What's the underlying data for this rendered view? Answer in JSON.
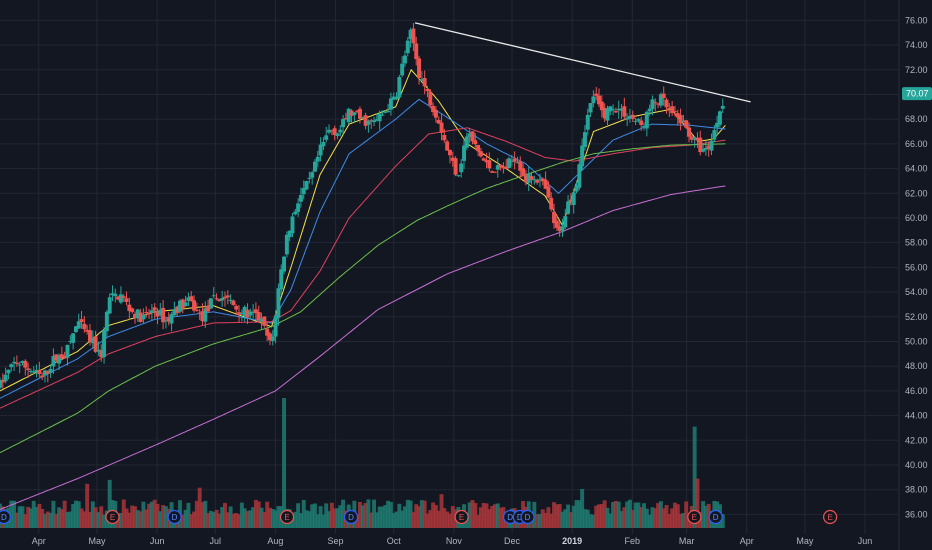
{
  "colors": {
    "background": "#131722",
    "grid": "#232733",
    "up": "#26a69a",
    "down": "#ef5350",
    "vol_up": "#1f7a70",
    "vol_down": "#a8363a",
    "ma_yellow": "#f5e14a",
    "ma_blue": "#3d8be8",
    "ma_red": "#e0415e",
    "ma_green": "#6bbf4a",
    "ma_purple": "#c76fd4",
    "trendline": "#e8e8e8",
    "price_tag": "#26a69a",
    "earnings_marker": "#ef5350",
    "dividend_marker": "#2962ff"
  },
  "last_price_label": "70.07",
  "chart_data": {
    "type": "line",
    "title": "",
    "xlabel": "",
    "ylabel": "",
    "ylim": [
      34.9,
      77.0
    ],
    "grid": true,
    "y_ticks": [
      "36.00",
      "38.00",
      "40.00",
      "42.00",
      "44.00",
      "46.00",
      "48.00",
      "50.00",
      "52.00",
      "54.00",
      "56.00",
      "58.00",
      "60.00",
      "62.00",
      "64.00",
      "66.00",
      "68.00",
      "70.00",
      "72.00",
      "74.00",
      "76.00"
    ],
    "x_ticks": [
      {
        "label": "Apr",
        "day": 20
      },
      {
        "label": "May",
        "day": 50
      },
      {
        "label": "Jun",
        "day": 81
      },
      {
        "label": "Jul",
        "day": 111
      },
      {
        "label": "Aug",
        "day": 142
      },
      {
        "label": "Sep",
        "day": 173
      },
      {
        "label": "Oct",
        "day": 203
      },
      {
        "label": "Nov",
        "day": 234
      },
      {
        "label": "Dec",
        "day": 264
      },
      {
        "label": "2019",
        "day": 295
      },
      {
        "label": "Feb",
        "day": 326
      },
      {
        "label": "Mar",
        "day": 354
      },
      {
        "label": "Apr",
        "day": 385
      },
      {
        "label": "May",
        "day": 415
      },
      {
        "label": "Jun",
        "day": 446
      }
    ],
    "x_range_days": [
      0,
      463
    ],
    "price_path": [
      [
        0,
        46.5
      ],
      [
        8,
        48.4
      ],
      [
        16,
        47.7
      ],
      [
        22,
        47.0
      ],
      [
        28,
        48.6
      ],
      [
        34,
        49.0
      ],
      [
        40,
        51.6
      ],
      [
        46,
        50.2
      ],
      [
        52,
        48.8
      ],
      [
        56,
        53.4
      ],
      [
        62,
        53.8
      ],
      [
        68,
        52.4
      ],
      [
        74,
        51.9
      ],
      [
        80,
        52.6
      ],
      [
        86,
        51.6
      ],
      [
        92,
        52.9
      ],
      [
        98,
        53.2
      ],
      [
        104,
        51.9
      ],
      [
        110,
        53.4
      ],
      [
        116,
        53.6
      ],
      [
        122,
        52.7
      ],
      [
        128,
        52.2
      ],
      [
        134,
        51.9
      ],
      [
        140,
        49.5
      ],
      [
        144,
        54.8
      ],
      [
        148,
        58.6
      ],
      [
        154,
        61.6
      ],
      [
        160,
        63.0
      ],
      [
        165,
        65.4
      ],
      [
        170,
        67.2
      ],
      [
        175,
        67.0
      ],
      [
        180,
        68.6
      ],
      [
        186,
        68.0
      ],
      [
        192,
        67.6
      ],
      [
        198,
        68.5
      ],
      [
        204,
        69.9
      ],
      [
        208,
        72.8
      ],
      [
        212,
        75.0
      ],
      [
        216,
        71.8
      ],
      [
        221,
        69.8
      ],
      [
        226,
        68.1
      ],
      [
        231,
        65.3
      ],
      [
        236,
        63.5
      ],
      [
        241,
        66.9
      ],
      [
        246,
        65.5
      ],
      [
        251,
        64.2
      ],
      [
        256,
        63.9
      ],
      [
        261,
        64.1
      ],
      [
        266,
        65.1
      ],
      [
        271,
        63.1
      ],
      [
        276,
        63.4
      ],
      [
        281,
        62.4
      ],
      [
        285,
        60.0
      ],
      [
        288,
        58.4
      ],
      [
        292,
        60.8
      ],
      [
        297,
        62.8
      ],
      [
        301,
        67.0
      ],
      [
        306,
        70.0
      ],
      [
        311,
        68.3
      ],
      [
        316,
        69.1
      ],
      [
        321,
        68.6
      ],
      [
        326,
        68.1
      ],
      [
        331,
        67.4
      ],
      [
        336,
        69.2
      ],
      [
        341,
        69.6
      ],
      [
        346,
        68.4
      ],
      [
        351,
        67.9
      ],
      [
        356,
        66.7
      ],
      [
        360,
        65.8
      ],
      [
        364,
        65.4
      ],
      [
        368,
        66.8
      ],
      [
        371,
        68.8
      ],
      [
        374,
        70.07
      ]
    ],
    "ma_paths": [
      {
        "color": "yellow",
        "points": [
          [
            0,
            46.0
          ],
          [
            40,
            49.2
          ],
          [
            56,
            51.3
          ],
          [
            80,
            52.4
          ],
          [
            110,
            52.9
          ],
          [
            140,
            51.2
          ],
          [
            150,
            56.0
          ],
          [
            165,
            63.5
          ],
          [
            180,
            67.6
          ],
          [
            204,
            69.0
          ],
          [
            212,
            72.0
          ],
          [
            226,
            69.5
          ],
          [
            241,
            66.0
          ],
          [
            261,
            64.0
          ],
          [
            281,
            61.8
          ],
          [
            290,
            59.4
          ],
          [
            306,
            67.0
          ],
          [
            326,
            68.2
          ],
          [
            346,
            68.8
          ],
          [
            360,
            66.2
          ],
          [
            368,
            66.4
          ],
          [
            374,
            67.5
          ]
        ]
      },
      {
        "color": "blue",
        "points": [
          [
            0,
            45.4
          ],
          [
            40,
            48.6
          ],
          [
            56,
            50.4
          ],
          [
            80,
            51.8
          ],
          [
            110,
            52.4
          ],
          [
            140,
            51.5
          ],
          [
            150,
            54.2
          ],
          [
            165,
            60.5
          ],
          [
            180,
            65.2
          ],
          [
            204,
            68.0
          ],
          [
            216,
            69.6
          ],
          [
            231,
            68.1
          ],
          [
            251,
            66.0
          ],
          [
            271,
            64.4
          ],
          [
            288,
            62.0
          ],
          [
            301,
            64.0
          ],
          [
            316,
            66.3
          ],
          [
            336,
            67.6
          ],
          [
            356,
            67.5
          ],
          [
            374,
            67.2
          ]
        ]
      },
      {
        "color": "red",
        "points": [
          [
            0,
            44.6
          ],
          [
            40,
            47.5
          ],
          [
            56,
            49.0
          ],
          [
            80,
            50.4
          ],
          [
            110,
            51.5
          ],
          [
            140,
            51.6
          ],
          [
            150,
            52.5
          ],
          [
            165,
            55.7
          ],
          [
            180,
            60.0
          ],
          [
            204,
            64.2
          ],
          [
            221,
            66.8
          ],
          [
            241,
            67.3
          ],
          [
            261,
            66.2
          ],
          [
            281,
            64.9
          ],
          [
            296,
            64.6
          ],
          [
            316,
            65.2
          ],
          [
            336,
            65.7
          ],
          [
            356,
            65.9
          ],
          [
            374,
            66.3
          ]
        ]
      },
      {
        "color": "green",
        "points": [
          [
            0,
            41.0
          ],
          [
            40,
            44.2
          ],
          [
            56,
            46.0
          ],
          [
            80,
            48.0
          ],
          [
            110,
            49.8
          ],
          [
            140,
            51.2
          ],
          [
            155,
            52.4
          ],
          [
            175,
            55.2
          ],
          [
            195,
            57.8
          ],
          [
            215,
            59.8
          ],
          [
            231,
            61.0
          ],
          [
            251,
            62.4
          ],
          [
            271,
            63.5
          ],
          [
            290,
            64.5
          ],
          [
            306,
            65.2
          ],
          [
            326,
            65.6
          ],
          [
            346,
            65.9
          ],
          [
            374,
            66.0
          ]
        ]
      },
      {
        "color": "purple",
        "points": [
          [
            0,
            36.4
          ],
          [
            40,
            38.9
          ],
          [
            80,
            41.6
          ],
          [
            110,
            43.7
          ],
          [
            142,
            46.0
          ],
          [
            165,
            48.8
          ],
          [
            195,
            52.6
          ],
          [
            231,
            55.5
          ],
          [
            261,
            57.3
          ],
          [
            290,
            58.9
          ],
          [
            316,
            60.6
          ],
          [
            346,
            61.9
          ],
          [
            374,
            62.6
          ]
        ]
      }
    ],
    "trendline": [
      [
        214,
        75.8
      ],
      [
        387,
        69.4
      ]
    ],
    "volume_spikes": [
      {
        "day": 45,
        "rel": 0.34,
        "up": false
      },
      {
        "day": 57,
        "rel": 0.37,
        "up": true
      },
      {
        "day": 103,
        "rel": 0.31,
        "up": false
      },
      {
        "day": 146,
        "rel": 1.0,
        "up": true
      },
      {
        "day": 228,
        "rel": 0.26,
        "up": false
      },
      {
        "day": 300,
        "rel": 0.3,
        "up": true
      },
      {
        "day": 358,
        "rel": 0.78,
        "up": true
      },
      {
        "day": 360,
        "rel": 0.38,
        "up": false
      }
    ],
    "events": [
      {
        "label": "D",
        "type": "dividend",
        "day": 2
      },
      {
        "label": "E",
        "type": "earnings",
        "day": 58
      },
      {
        "label": "D",
        "type": "dividend",
        "day": 90
      },
      {
        "label": "E",
        "type": "earnings",
        "day": 148
      },
      {
        "label": "D",
        "type": "dividend",
        "day": 181
      },
      {
        "label": "E",
        "type": "earnings",
        "day": 238
      },
      {
        "label": "D",
        "type": "dividend",
        "day": 263
      },
      {
        "label": "D",
        "type": "dividend",
        "day": 268
      },
      {
        "label": "D",
        "type": "dividend",
        "day": 272
      },
      {
        "label": "E",
        "type": "earnings",
        "day": 358
      },
      {
        "label": "D",
        "type": "dividend",
        "day": 369
      },
      {
        "label": "E",
        "type": "earnings",
        "day": 428
      }
    ]
  }
}
